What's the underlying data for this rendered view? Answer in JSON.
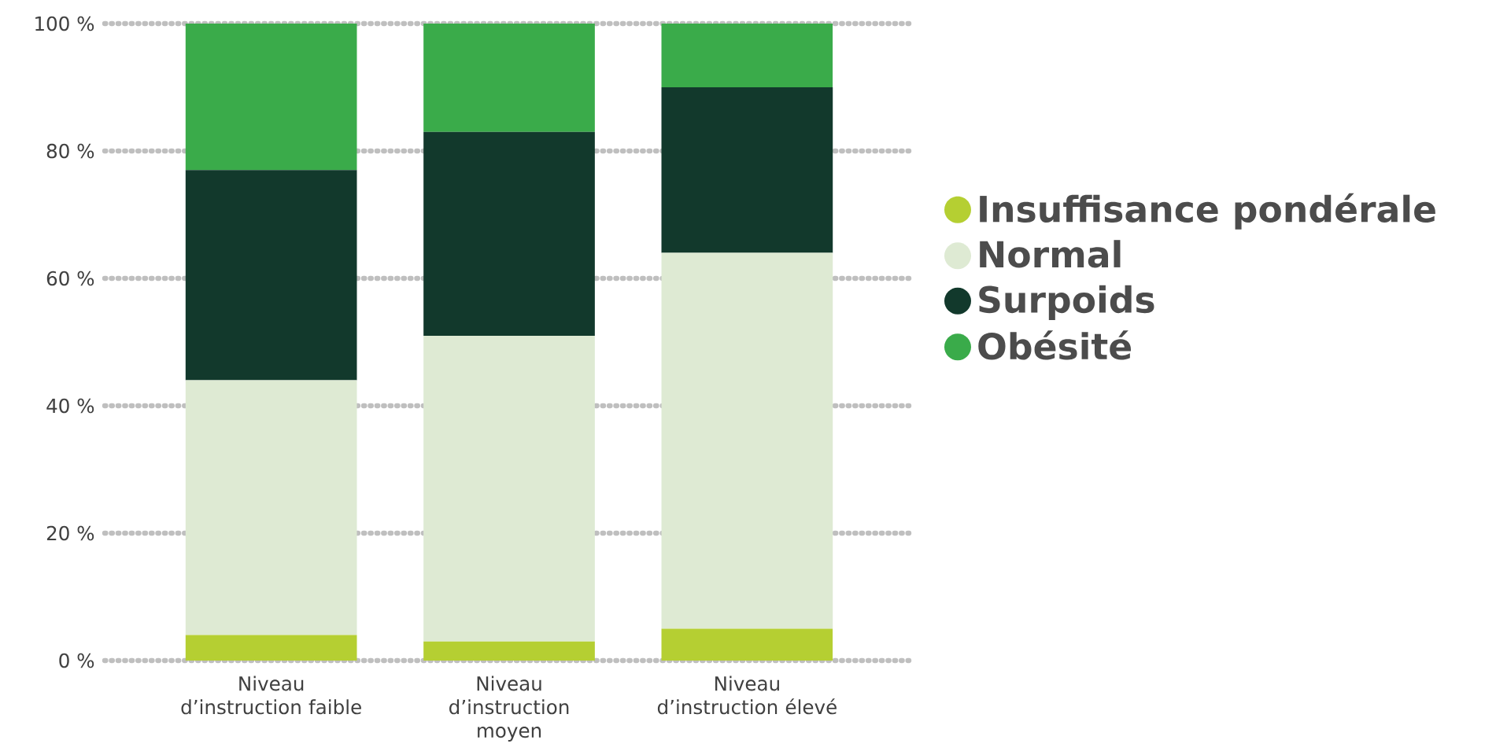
{
  "chart_data": {
    "type": "bar",
    "stacked": true,
    "categories": [
      "Niveau d’instruction faible",
      "Niveau d’instruction moyen",
      "Niveau d’instruction élevé"
    ],
    "series": [
      {
        "name": "Insuffisance pondérale",
        "color": "#b5cf32",
        "values": [
          4,
          3,
          5
        ]
      },
      {
        "name": "Normal",
        "color": "#deead3",
        "values": [
          40,
          48,
          59
        ]
      },
      {
        "name": "Surpoids",
        "color": "#12392c",
        "values": [
          33,
          32,
          26
        ]
      },
      {
        "name": "Obésité",
        "color": "#3aab4a",
        "values": [
          23,
          17,
          10
        ]
      }
    ],
    "ylim": [
      0,
      100
    ],
    "yticks": [
      {
        "value": 0,
        "label": "0 %"
      },
      {
        "value": 20,
        "label": "20 %"
      },
      {
        "value": 40,
        "label": "40 %"
      },
      {
        "value": 60,
        "label": "60 %"
      },
      {
        "value": 80,
        "label": "80 %"
      },
      {
        "value": 100,
        "label": "100 %"
      }
    ],
    "grid": "y",
    "legend": "right"
  }
}
